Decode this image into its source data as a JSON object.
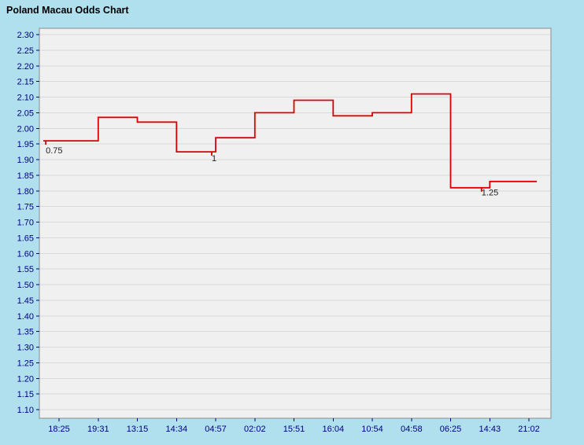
{
  "title": "Poland Macau Odds Chart",
  "colors": {
    "page_bg": "#b0dfee",
    "plot_bg": "#f0f0f0",
    "grid": "#d9d9d9",
    "plot_border": "#8c8c8c",
    "line": "#dd0000",
    "axis_text": "#000080",
    "annotation_text": "#222222",
    "title_text": "#000000"
  },
  "chart_data": {
    "type": "line",
    "subtype": "step-after",
    "title": "Poland Macau Odds Chart",
    "xlabel": "",
    "ylabel": "",
    "legend": "none",
    "grid": "horizontal",
    "ylim": [
      1.1,
      2.3
    ],
    "y_tick_step": 0.05,
    "x_tick_labels": [
      "18:25",
      "19:31",
      "13:15",
      "14:34",
      "04:57",
      "02:02",
      "15:51",
      "16:04",
      "10:54",
      "04:58",
      "06:25",
      "14:43",
      "21:02"
    ],
    "series": [
      {
        "name": "Macau odds",
        "color": "#dd0000",
        "values": [
          1.96,
          2.035,
          2.02,
          1.925,
          1.97,
          2.05,
          2.09,
          2.04,
          2.05,
          2.11,
          1.81,
          1.83,
          1.83
        ]
      }
    ],
    "annotations": [
      {
        "text": "0.75",
        "x_index": -0.34,
        "y": 1.92
      },
      {
        "text": "1",
        "x_index": 3.9,
        "y": 1.895
      },
      {
        "text": "1.25",
        "x_index": 10.79,
        "y": 1.785
      }
    ],
    "change_ticks": [
      {
        "x_index": -0.34,
        "value": 1.96
      },
      {
        "x_index": 3.9,
        "value": 1.925
      },
      {
        "x_index": 10.79,
        "value": 1.81
      }
    ]
  }
}
